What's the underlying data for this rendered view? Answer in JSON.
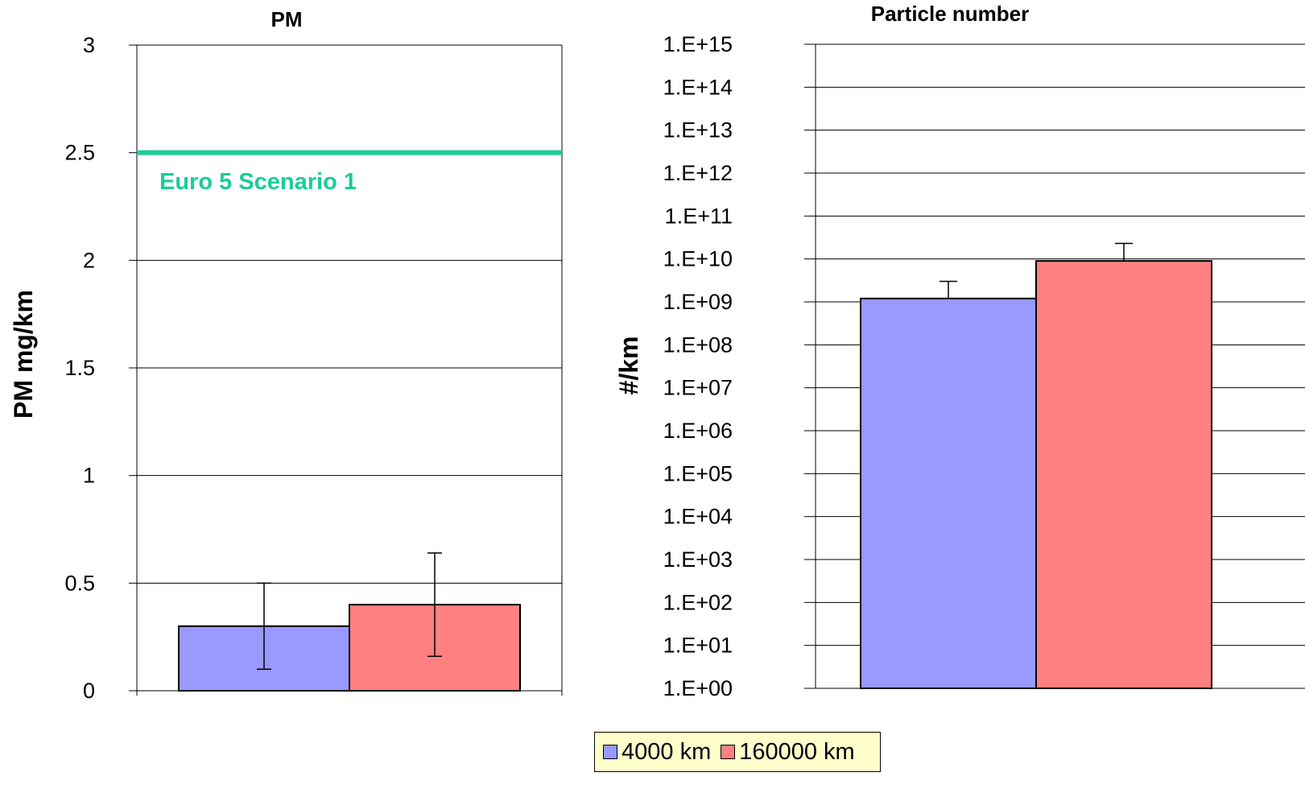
{
  "chart_data": [
    {
      "type": "bar",
      "title": "PM",
      "ylabel": "PM mg/km",
      "xlabel": "",
      "ylim": [
        0,
        3
      ],
      "yticks": [
        "0",
        "0.5",
        "1",
        "1.5",
        "2",
        "2.5",
        "3"
      ],
      "grid": true,
      "series": [
        {
          "name": "4000 km",
          "value": 0.3,
          "error_low": 0.1,
          "error_high": 0.5
        },
        {
          "name": "160000 km",
          "value": 0.4,
          "error_low": 0.16,
          "error_high": 0.64
        }
      ],
      "reference_line": {
        "label": "Euro 5 Scenario 1",
        "value": 2.5
      }
    },
    {
      "type": "bar",
      "title": "Particle number",
      "ylabel": "#/km",
      "xlabel": "",
      "yscale": "log",
      "ylim": [
        1,
        1000000000000000.0
      ],
      "yticks": [
        "1.E+00",
        "1.E+01",
        "1.E+02",
        "1.E+03",
        "1.E+04",
        "1.E+05",
        "1.E+06",
        "1.E+07",
        "1.E+08",
        "1.E+09",
        "1.E+10",
        "1.E+11",
        "1.E+12",
        "1.E+13",
        "1.E+14",
        "1.E+15"
      ],
      "grid": true,
      "series": [
        {
          "name": "4000 km",
          "value": 1200000000.0,
          "error_high": 3000000000.0
        },
        {
          "name": "160000 km",
          "value": 9000000000.0,
          "error_high": 23000000000.0
        }
      ]
    }
  ],
  "legend": {
    "placement": "bottom-center",
    "items": [
      {
        "label": "4000 km",
        "color": "#9999ff"
      },
      {
        "label": "160000 km",
        "color": "#ff8080"
      }
    ]
  },
  "colors": {
    "reference_line": "#1acc99"
  }
}
